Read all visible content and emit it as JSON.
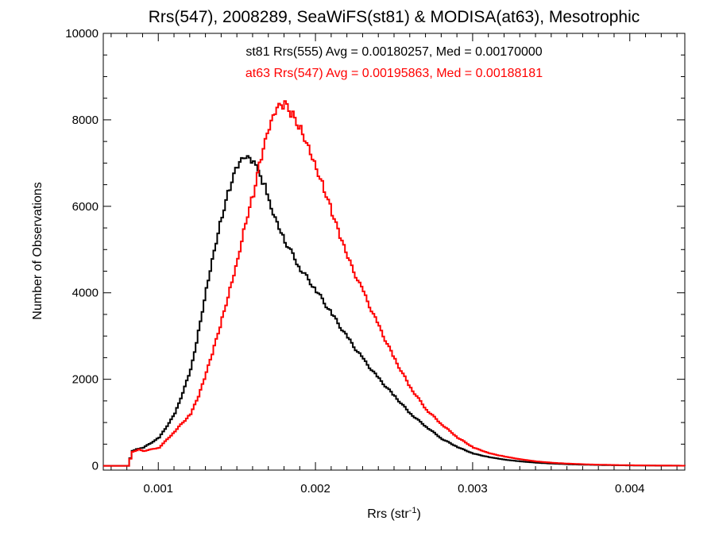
{
  "chart_data": {
    "type": "line",
    "title": "Rrs(547), 2008289, SeaWiFS(st81) & MODISA(at63), Mesotrophic",
    "xlabel": "Rrs (str",
    "xlabel_sup": "-1",
    "xlabel_close": ")",
    "ylabel": "Number of Observations",
    "xlim": [
      0.00065,
      0.00435
    ],
    "ylim": [
      -100,
      10000
    ],
    "x_ticks": [
      0.001,
      0.002,
      0.003,
      0.004
    ],
    "x_tick_labels": [
      "0.001",
      "0.002",
      "0.003",
      "0.004"
    ],
    "y_ticks": [
      0,
      2000,
      4000,
      6000,
      8000,
      10000
    ],
    "y_tick_labels": [
      "0",
      "2000",
      "4000",
      "6000",
      "8000",
      "10000"
    ],
    "grid": false,
    "annotations": [
      {
        "text": "st81 Rrs(555) Avg = 0.00180257, Med = 0.00170000",
        "color": "#000000"
      },
      {
        "text": "at63 Rrs(547) Avg = 0.00195863, Med = 0.00188181",
        "color": "#ff0000"
      }
    ],
    "series": [
      {
        "color": "#000000",
        "step": true,
        "x": [
          0.00065,
          0.0008,
          0.00083,
          0.00087,
          0.0009,
          0.001,
          0.0011,
          0.0012,
          0.00125,
          0.0013,
          0.00135,
          0.0014,
          0.00145,
          0.0015,
          0.00155,
          0.0016,
          0.00163,
          0.00167,
          0.0017,
          0.00175,
          0.0018,
          0.0019,
          0.002,
          0.0021,
          0.0022,
          0.0023,
          0.0024,
          0.0025,
          0.0026,
          0.0027,
          0.0028,
          0.0029,
          0.003,
          0.0031,
          0.0032,
          0.0033,
          0.0034,
          0.0035,
          0.0036,
          0.0037,
          0.0038,
          0.0039,
          0.004,
          0.0041,
          0.0042,
          0.0043,
          0.00435
        ],
        "y": [
          0,
          0,
          350,
          400,
          420,
          650,
          1200,
          2200,
          3100,
          4100,
          5000,
          5800,
          6450,
          6950,
          7120,
          7000,
          6750,
          6450,
          6100,
          5650,
          5200,
          4550,
          4050,
          3500,
          2950,
          2450,
          2000,
          1600,
          1200,
          900,
          620,
          430,
          280,
          200,
          140,
          100,
          70,
          50,
          35,
          25,
          18,
          12,
          8,
          5,
          3,
          2,
          0
        ]
      },
      {
        "color": "#ff0000",
        "step": true,
        "x": [
          0.00065,
          0.0008,
          0.00083,
          0.00087,
          0.0009,
          0.001,
          0.0011,
          0.0012,
          0.00125,
          0.0013,
          0.00135,
          0.0014,
          0.00145,
          0.0015,
          0.00155,
          0.0016,
          0.00165,
          0.0017,
          0.00175,
          0.0018,
          0.00185,
          0.0019,
          0.00195,
          0.002,
          0.00205,
          0.0021,
          0.00215,
          0.0022,
          0.0023,
          0.0024,
          0.0025,
          0.0026,
          0.0027,
          0.0028,
          0.0029,
          0.003,
          0.0031,
          0.0032,
          0.0033,
          0.0034,
          0.0035,
          0.0036,
          0.0037,
          0.0038,
          0.0039,
          0.004,
          0.0041,
          0.0042,
          0.0043,
          0.00435
        ],
        "y": [
          0,
          0,
          320,
          380,
          340,
          420,
          800,
          1200,
          1600,
          2150,
          2750,
          3400,
          4100,
          4800,
          5650,
          6300,
          7150,
          7800,
          8250,
          8350,
          8100,
          7800,
          7400,
          6900,
          6400,
          5850,
          5300,
          4800,
          4000,
          3200,
          2450,
          1800,
          1300,
          950,
          650,
          420,
          290,
          210,
          150,
          100,
          70,
          50,
          35,
          25,
          18,
          12,
          8,
          5,
          3,
          0
        ]
      }
    ]
  }
}
